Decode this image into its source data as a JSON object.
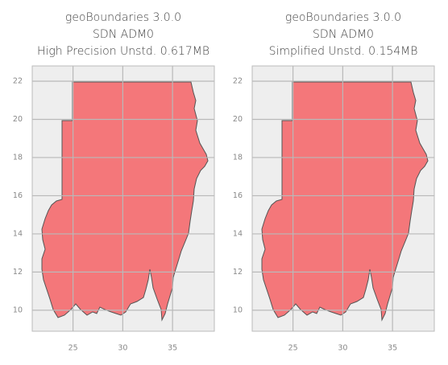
{
  "chart_data": [
    {
      "type": "map",
      "title": [
        "geoBoundaries 3.0.0",
        "SDN ADM0",
        "High Precision Unstd. 0.617MB"
      ],
      "xlim": [
        20.9,
        39.2
      ],
      "ylim": [
        8.9,
        22.8
      ],
      "xticks": [
        25,
        30,
        35
      ],
      "yticks": [
        10,
        12,
        14,
        16,
        18,
        20,
        22
      ],
      "grid": true,
      "color": "#f4777a"
    },
    {
      "type": "map",
      "title": [
        "geoBoundaries 3.0.0",
        "SDN ADM0",
        "Simplified Unstd. 0.154MB"
      ],
      "xlim": [
        20.9,
        39.2
      ],
      "ylim": [
        8.9,
        22.8
      ],
      "xticks": [
        25,
        30,
        35
      ],
      "yticks": [
        10,
        12,
        14,
        16,
        18,
        20,
        22
      ],
      "grid": true,
      "color": "#f4777a"
    }
  ]
}
